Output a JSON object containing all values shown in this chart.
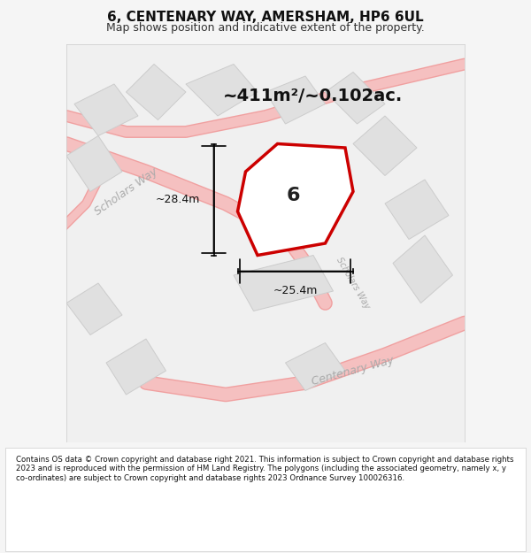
{
  "title": "6, CENTENARY WAY, AMERSHAM, HP6 6UL",
  "subtitle": "Map shows position and indicative extent of the property.",
  "area_text": "~411m²/~0.102ac.",
  "dim_width": "~25.4m",
  "dim_height": "~28.4m",
  "property_label": "6",
  "road_label_1": "Scholars Way",
  "road_label_2": "Centenary Way",
  "road_label_3": "Scholars Way",
  "footer": "Contains OS data © Crown copyright and database right 2021. This information is subject to Crown copyright and database rights 2023 and is reproduced with the permission of HM Land Registry. The polygons (including the associated geometry, namely x, y co-ordinates) are subject to Crown copyright and database rights 2023 Ordnance Survey 100026316.",
  "bg_color": "#f5f5f5",
  "map_bg": "#f0f0f0",
  "building_color": "#e0e0e0",
  "building_edge": "#cccccc",
  "road_color": "#ffcccc",
  "road_edge": "#ffaaaa",
  "property_fill": "#f8f8f8",
  "property_edge": "#cc0000",
  "arrow_color": "#111111",
  "text_color": "#333333",
  "road_text_color": "#aaaaaa"
}
